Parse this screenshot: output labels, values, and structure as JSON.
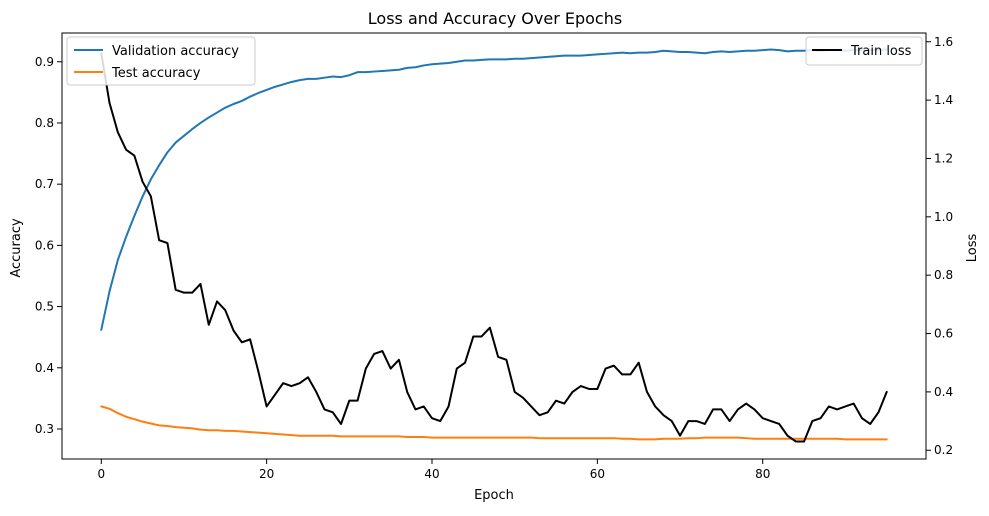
{
  "chart_data": {
    "type": "line",
    "title": "Loss and Accuracy Over Epochs",
    "xlabel": "Epoch",
    "ylabel_left": "Accuracy",
    "ylabel_right": "Loss",
    "xlim": [
      -4.75,
      99.75
    ],
    "ylim_left": [
      0.251,
      0.947
    ],
    "ylim_right": [
      0.17,
      1.63
    ],
    "xticks": [
      0,
      20,
      40,
      60,
      80
    ],
    "yticks_left": [
      0.3,
      0.4,
      0.5,
      0.6,
      0.7,
      0.8,
      0.9
    ],
    "yticks_right": [
      0.2,
      0.4,
      0.6,
      0.8,
      1.0,
      1.2,
      1.4,
      1.6
    ],
    "grid": false,
    "legend_left_position": "upper-left",
    "legend_right_position": "upper-right",
    "series": [
      {
        "name": "Validation accuracy",
        "axis": "left",
        "color": "#1f77b4",
        "values": [
          0.462,
          0.525,
          0.576,
          0.614,
          0.648,
          0.68,
          0.708,
          0.731,
          0.752,
          0.768,
          0.779,
          0.79,
          0.8,
          0.809,
          0.817,
          0.825,
          0.831,
          0.836,
          0.843,
          0.849,
          0.854,
          0.859,
          0.863,
          0.867,
          0.87,
          0.872,
          0.872,
          0.874,
          0.876,
          0.875,
          0.878,
          0.883,
          0.883,
          0.884,
          0.885,
          0.886,
          0.887,
          0.89,
          0.891,
          0.894,
          0.896,
          0.897,
          0.898,
          0.9,
          0.902,
          0.902,
          0.903,
          0.904,
          0.904,
          0.904,
          0.905,
          0.905,
          0.906,
          0.907,
          0.908,
          0.909,
          0.91,
          0.91,
          0.91,
          0.911,
          0.912,
          0.913,
          0.914,
          0.915,
          0.914,
          0.915,
          0.915,
          0.916,
          0.918,
          0.917,
          0.916,
          0.916,
          0.915,
          0.914,
          0.916,
          0.917,
          0.916,
          0.917,
          0.918,
          0.918,
          0.919,
          0.92,
          0.919,
          0.917,
          0.918,
          0.918,
          0.919,
          0.918,
          0.919,
          0.919,
          0.918,
          0.919,
          0.919,
          0.919,
          0.919,
          0.92
        ]
      },
      {
        "name": "Test accuracy",
        "axis": "left",
        "color": "#ff7f0e",
        "values": [
          0.337,
          0.333,
          0.326,
          0.32,
          0.316,
          0.312,
          0.309,
          0.306,
          0.305,
          0.303,
          0.302,
          0.301,
          0.299,
          0.298,
          0.298,
          0.297,
          0.297,
          0.296,
          0.295,
          0.294,
          0.293,
          0.292,
          0.291,
          0.29,
          0.289,
          0.289,
          0.289,
          0.289,
          0.289,
          0.288,
          0.288,
          0.288,
          0.288,
          0.288,
          0.288,
          0.288,
          0.288,
          0.287,
          0.287,
          0.287,
          0.286,
          0.286,
          0.286,
          0.286,
          0.286,
          0.286,
          0.286,
          0.286,
          0.286,
          0.286,
          0.286,
          0.286,
          0.286,
          0.285,
          0.285,
          0.285,
          0.285,
          0.285,
          0.285,
          0.285,
          0.285,
          0.285,
          0.285,
          0.284,
          0.284,
          0.283,
          0.283,
          0.283,
          0.284,
          0.284,
          0.284,
          0.285,
          0.285,
          0.286,
          0.286,
          0.286,
          0.286,
          0.286,
          0.285,
          0.284,
          0.284,
          0.284,
          0.284,
          0.284,
          0.284,
          0.284,
          0.284,
          0.284,
          0.284,
          0.284,
          0.283,
          0.283,
          0.283,
          0.283,
          0.283,
          0.283
        ]
      },
      {
        "name": "Train loss",
        "axis": "right",
        "color": "#000000",
        "values": [
          1.56,
          1.39,
          1.29,
          1.23,
          1.21,
          1.12,
          1.07,
          0.92,
          0.91,
          0.75,
          0.74,
          0.74,
          0.77,
          0.63,
          0.71,
          0.68,
          0.61,
          0.57,
          0.58,
          0.47,
          0.35,
          0.39,
          0.43,
          0.42,
          0.43,
          0.45,
          0.4,
          0.34,
          0.33,
          0.29,
          0.37,
          0.37,
          0.48,
          0.53,
          0.54,
          0.48,
          0.51,
          0.4,
          0.34,
          0.35,
          0.31,
          0.3,
          0.35,
          0.48,
          0.5,
          0.59,
          0.59,
          0.62,
          0.52,
          0.51,
          0.4,
          0.38,
          0.35,
          0.32,
          0.33,
          0.37,
          0.36,
          0.4,
          0.42,
          0.41,
          0.41,
          0.48,
          0.49,
          0.46,
          0.46,
          0.5,
          0.4,
          0.35,
          0.32,
          0.3,
          0.25,
          0.3,
          0.3,
          0.29,
          0.34,
          0.34,
          0.3,
          0.34,
          0.36,
          0.34,
          0.31,
          0.3,
          0.29,
          0.25,
          0.23,
          0.23,
          0.3,
          0.31,
          0.35,
          0.34,
          0.35,
          0.36,
          0.31,
          0.29,
          0.33,
          0.4
        ]
      }
    ]
  }
}
